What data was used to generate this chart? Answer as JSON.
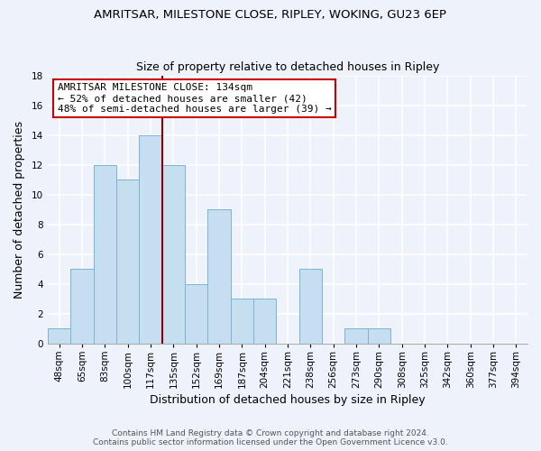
{
  "title": "AMRITSAR, MILESTONE CLOSE, RIPLEY, WOKING, GU23 6EP",
  "subtitle": "Size of property relative to detached houses in Ripley",
  "xlabel": "Distribution of detached houses by size in Ripley",
  "ylabel": "Number of detached properties",
  "bin_labels": [
    "48sqm",
    "65sqm",
    "83sqm",
    "100sqm",
    "117sqm",
    "135sqm",
    "152sqm",
    "169sqm",
    "187sqm",
    "204sqm",
    "221sqm",
    "238sqm",
    "256sqm",
    "273sqm",
    "290sqm",
    "308sqm",
    "325sqm",
    "342sqm",
    "360sqm",
    "377sqm",
    "394sqm"
  ],
  "bar_heights": [
    1,
    5,
    12,
    11,
    14,
    12,
    4,
    9,
    3,
    3,
    0,
    5,
    0,
    1,
    1,
    0,
    0,
    0,
    0,
    0,
    0
  ],
  "bar_color": "#c6dff0",
  "bar_edge_color": "#7ab4d4",
  "marker_bin_index": 5,
  "marker_color": "#8b0000",
  "ylim": [
    0,
    18
  ],
  "yticks": [
    0,
    2,
    4,
    6,
    8,
    10,
    12,
    14,
    16,
    18
  ],
  "annotation_title": "AMRITSAR MILESTONE CLOSE: 134sqm",
  "annotation_line1": "← 52% of detached houses are smaller (42)",
  "annotation_line2": "48% of semi-detached houses are larger (39) →",
  "annotation_box_color": "#ffffff",
  "annotation_box_edge": "#cc0000",
  "footer_line1": "Contains HM Land Registry data © Crown copyright and database right 2024.",
  "footer_line2": "Contains public sector information licensed under the Open Government Licence v3.0.",
  "background_color": "#eef2fa",
  "plot_background": "#eef2fa",
  "grid_color": "#ffffff",
  "title_fontsize": 9.5,
  "subtitle_fontsize": 9,
  "axis_label_fontsize": 9,
  "tick_fontsize": 7.5,
  "footer_fontsize": 6.5,
  "ann_fontsize": 8
}
